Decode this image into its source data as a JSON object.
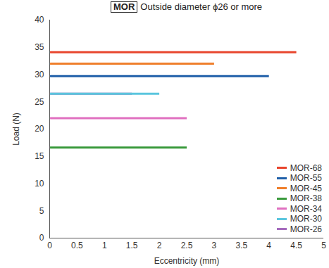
{
  "chart_data": {
    "type": "line",
    "title": "MOR Outside diameter ϕ26 or more",
    "x_label": "Eccentricity (mm)",
    "y_label": "Load (N)",
    "xlim": [
      0,
      5
    ],
    "xticks": [
      0,
      0.5,
      1,
      1.5,
      2,
      2.5,
      3,
      3.5,
      4,
      4.5,
      5
    ],
    "ylim": [
      0,
      40
    ],
    "yticks": [
      0,
      5,
      10,
      15,
      20,
      25,
      30,
      35,
      40
    ],
    "grid": false,
    "legend": "lower right",
    "series": [
      {
        "name": "MOR-68",
        "color": "#e8452c",
        "x": [
          0,
          4.5
        ],
        "values": [
          34.1,
          34.1
        ]
      },
      {
        "name": "MOR-55",
        "color": "#1f5fa8",
        "x": [
          0,
          4
        ],
        "values": [
          29.7,
          29.7
        ]
      },
      {
        "name": "MOR-45",
        "color": "#ef7f2c",
        "x": [
          0,
          3
        ],
        "values": [
          32,
          32
        ]
      },
      {
        "name": "MOR-38",
        "color": "#3a9a3c",
        "x": [
          0,
          2.5
        ],
        "values": [
          16.6,
          16.6
        ]
      },
      {
        "name": "MOR-34",
        "color": "#e070c0",
        "x": [
          0,
          2.5
        ],
        "values": [
          22,
          22
        ]
      },
      {
        "name": "MOR-30",
        "color": "#5bc6de",
        "x": [
          0,
          2
        ],
        "values": [
          26.5,
          26.5
        ]
      },
      {
        "name": "MOR-26",
        "color": "#a56bbd",
        "x": [
          0,
          1.5
        ],
        "values": [
          26.5,
          26.5
        ]
      }
    ]
  }
}
